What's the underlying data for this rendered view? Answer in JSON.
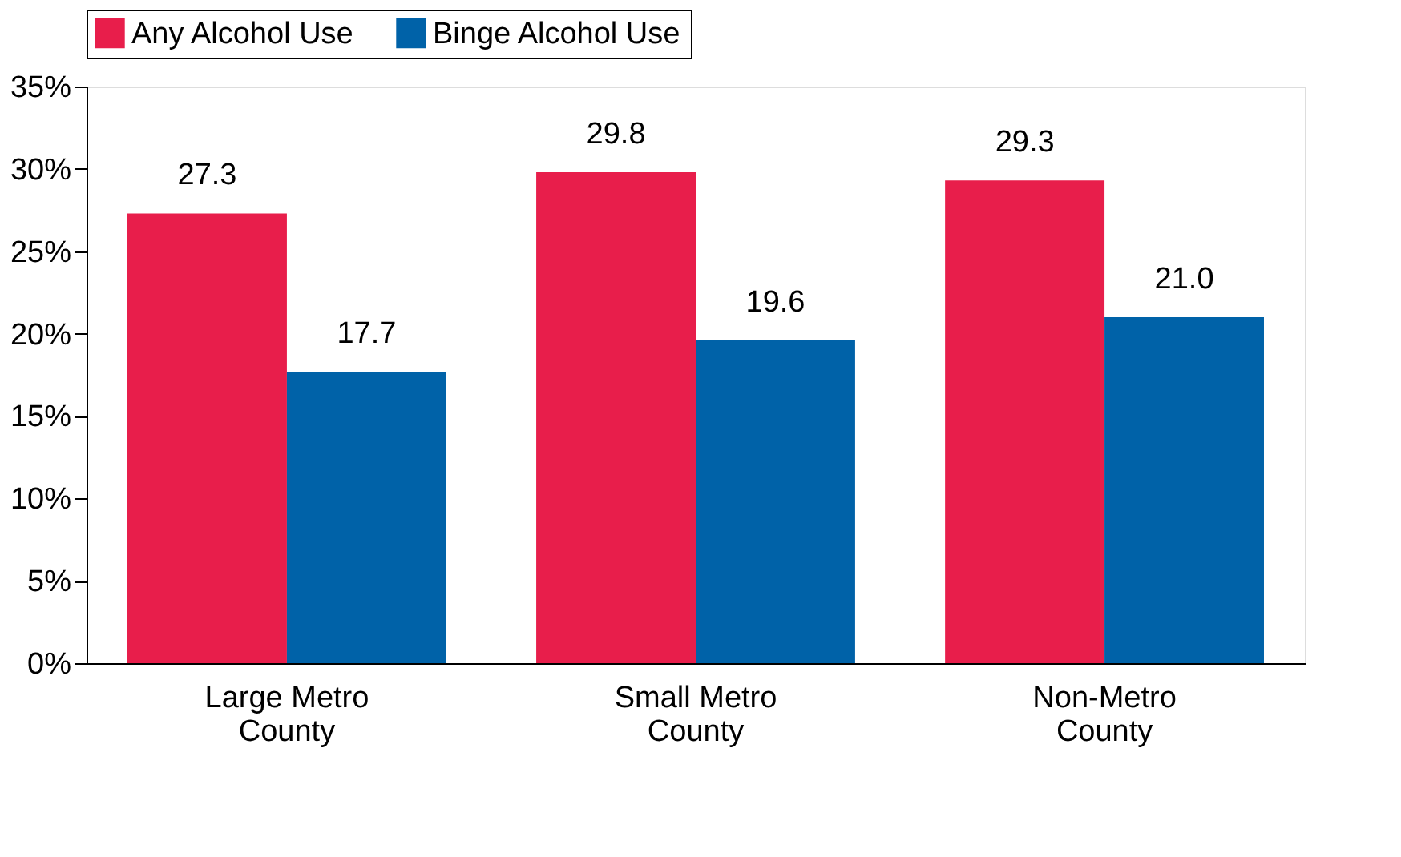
{
  "chart_data": {
    "type": "bar",
    "categories": [
      "Large Metro\nCounty",
      "Small Metro\nCounty",
      "Non-Metro\nCounty"
    ],
    "series": [
      {
        "name": "Any Alcohol Use",
        "color": "#e81e4b",
        "values": [
          27.3,
          29.8,
          29.3
        ],
        "value_labels": [
          "27.3",
          "29.8",
          "29.3"
        ]
      },
      {
        "name": "Binge Alcohol Use",
        "color": "#0062a8",
        "values": [
          17.7,
          19.6,
          21.0
        ],
        "value_labels": [
          "17.7",
          "19.6",
          "21.0"
        ]
      }
    ],
    "ylim": [
      0,
      35
    ],
    "yticks": [
      {
        "value": 0,
        "label": "0%"
      },
      {
        "value": 5,
        "label": "5%"
      },
      {
        "value": 10,
        "label": "10%"
      },
      {
        "value": 15,
        "label": "15%"
      },
      {
        "value": 20,
        "label": "20%"
      },
      {
        "value": 25,
        "label": "25%"
      },
      {
        "value": 30,
        "label": "30%"
      },
      {
        "value": 35,
        "label": "35%"
      }
    ],
    "grid": false,
    "legend": "top"
  }
}
